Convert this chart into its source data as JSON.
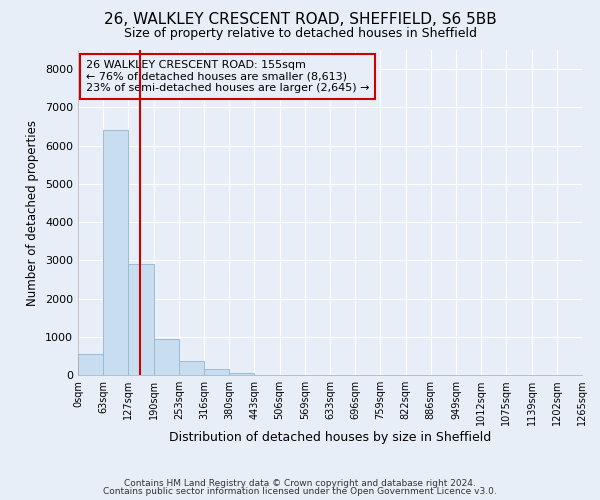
{
  "title1": "26, WALKLEY CRESCENT ROAD, SHEFFIELD, S6 5BB",
  "title2": "Size of property relative to detached houses in Sheffield",
  "xlabel": "Distribution of detached houses by size in Sheffield",
  "ylabel": "Number of detached properties",
  "footer1": "Contains HM Land Registry data © Crown copyright and database right 2024.",
  "footer2": "Contains public sector information licensed under the Open Government Licence v3.0.",
  "bin_labels": [
    "0sqm",
    "63sqm",
    "127sqm",
    "190sqm",
    "253sqm",
    "316sqm",
    "380sqm",
    "443sqm",
    "506sqm",
    "569sqm",
    "633sqm",
    "696sqm",
    "759sqm",
    "822sqm",
    "886sqm",
    "949sqm",
    "1012sqm",
    "1075sqm",
    "1139sqm",
    "1202sqm",
    "1265sqm"
  ],
  "bar_values": [
    550,
    6400,
    2900,
    950,
    370,
    150,
    65,
    0,
    0,
    0,
    0,
    0,
    0,
    0,
    0,
    0,
    0,
    0,
    0,
    0
  ],
  "bar_color": "#c8ddf0",
  "bar_edge_color": "#9bbbd4",
  "vline_x": 155,
  "vline_color": "#cc0000",
  "ylim": [
    0,
    8500
  ],
  "yticks": [
    0,
    1000,
    2000,
    3000,
    4000,
    5000,
    6000,
    7000,
    8000
  ],
  "annotation_line1": "26 WALKLEY CRESCENT ROAD: 155sqm",
  "annotation_line2": "← 76% of detached houses are smaller (8,613)",
  "annotation_line3": "23% of semi-detached houses are larger (2,645) →",
  "annotation_box_color": "#cc0000",
  "bg_color": "#e8eef8",
  "grid_color": "#ffffff",
  "bin_width": 63,
  "title1_fontsize": 11,
  "title2_fontsize": 9
}
